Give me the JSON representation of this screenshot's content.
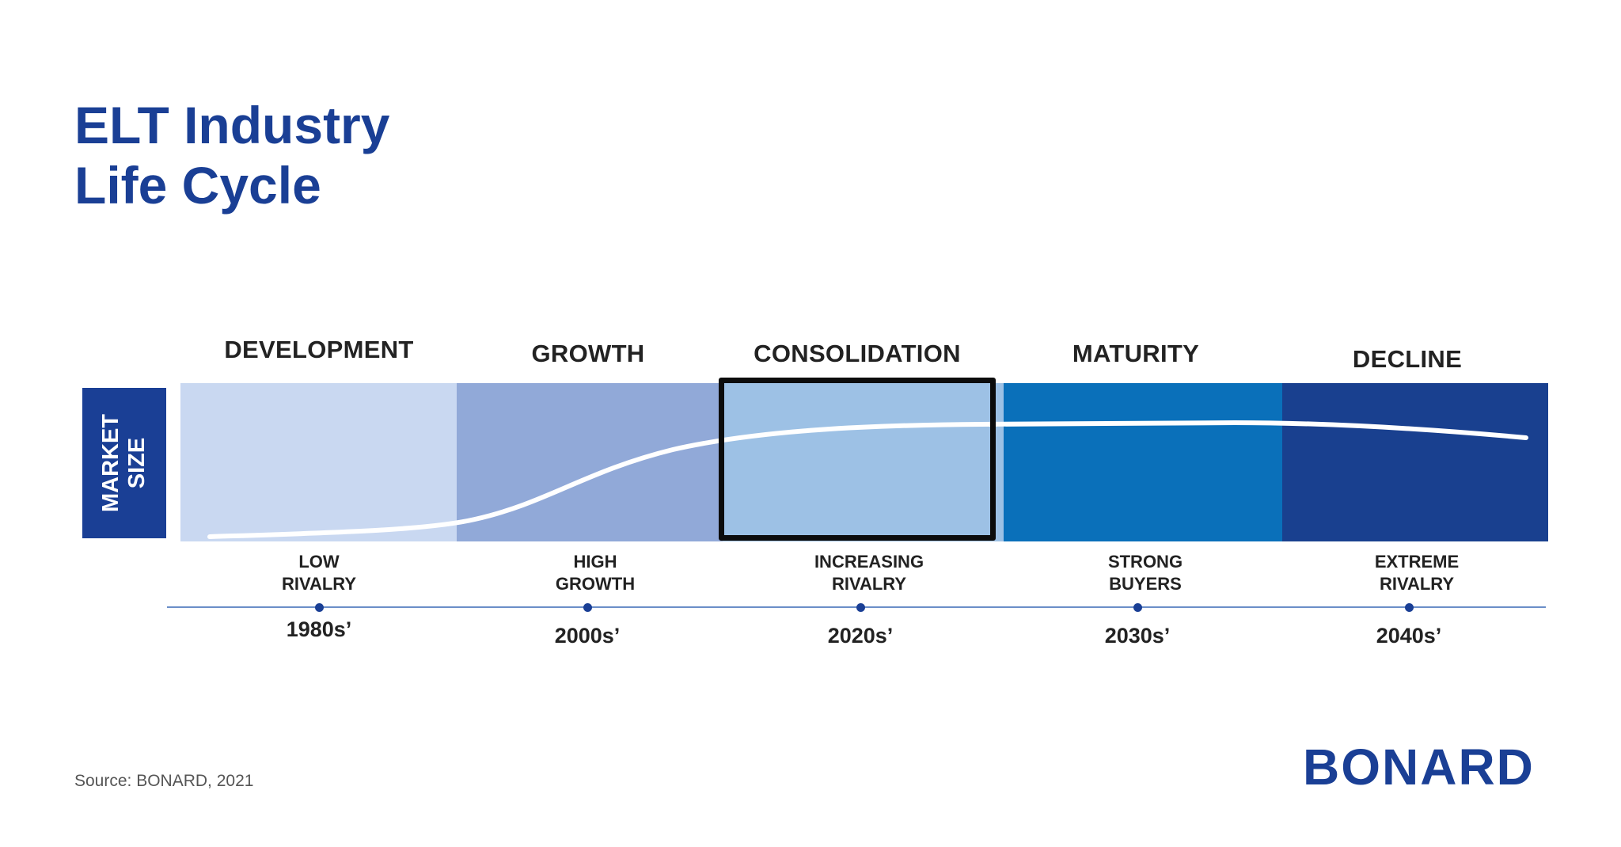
{
  "title": {
    "line1": "ELT Industry",
    "line2": "Life Cycle"
  },
  "y_axis": {
    "line1": "MARKET",
    "line2": "SIZE"
  },
  "stages": [
    {
      "label": "DEVELOPMENT",
      "characteristic": [
        "LOW",
        "RIVALRY"
      ],
      "era": "1980s’",
      "color": "#c9d8f1"
    },
    {
      "label": "GROWTH",
      "characteristic": [
        "HIGH",
        "GROWTH"
      ],
      "era": "2000s’",
      "color": "#91a9d8"
    },
    {
      "label": "CONSOLIDATION",
      "characteristic": [
        "INCREASING",
        "RIVALRY"
      ],
      "era": "2020s’",
      "color": "#9dc1e5",
      "highlighted": true
    },
    {
      "label": "MATURITY",
      "characteristic": [
        "STRONG",
        "BUYERS"
      ],
      "era": "2030s’",
      "color": "#0a70ba"
    },
    {
      "label": "DECLINE",
      "characteristic": [
        "EXTREME",
        "RIVALRY"
      ],
      "era": "2040s’",
      "color": "#19408f"
    }
  ],
  "source": "Source: BONARD, 2021",
  "logo": "BONARD",
  "colors": {
    "brand": "#1a3f95",
    "curve": "#ffffff",
    "highlight_border": "#0c0c0c"
  }
}
